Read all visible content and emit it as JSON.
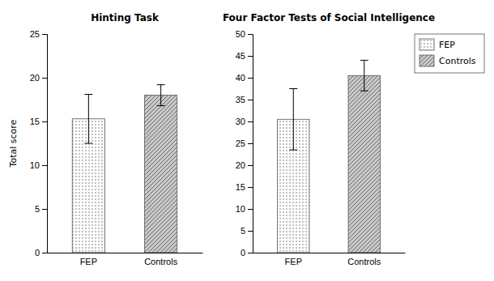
{
  "chart_data": [
    {
      "type": "bar",
      "title": "Hinting Task",
      "ylabel": "Total score",
      "categories": [
        "FEP",
        "Controls"
      ],
      "series": [
        {
          "name": "FEP",
          "color": "#ffffff",
          "values": [
            15.3,
            null
          ],
          "errors": [
            2.8,
            null
          ]
        },
        {
          "name": "Controls",
          "color": "#c8c8c8",
          "values": [
            null,
            18.0
          ],
          "errors": [
            null,
            1.2
          ]
        }
      ],
      "ylim": [
        0,
        25
      ],
      "yticks": [
        0,
        5,
        10,
        15,
        20,
        25
      ]
    },
    {
      "type": "bar",
      "title": "Four Factor Tests of Social Intelligence",
      "categories": [
        "FEP",
        "Controls"
      ],
      "series": [
        {
          "name": "FEP",
          "color": "#ffffff",
          "values": [
            30.5,
            null
          ],
          "errors": [
            7.0,
            null
          ]
        },
        {
          "name": "Controls",
          "color": "#c8c8c8",
          "values": [
            null,
            40.5
          ],
          "errors": [
            null,
            3.5
          ]
        }
      ],
      "ylim": [
        0,
        50
      ],
      "yticks": [
        0,
        5,
        10,
        15,
        20,
        25,
        30,
        35,
        40,
        45,
        50
      ],
      "legend": "upper right"
    }
  ]
}
